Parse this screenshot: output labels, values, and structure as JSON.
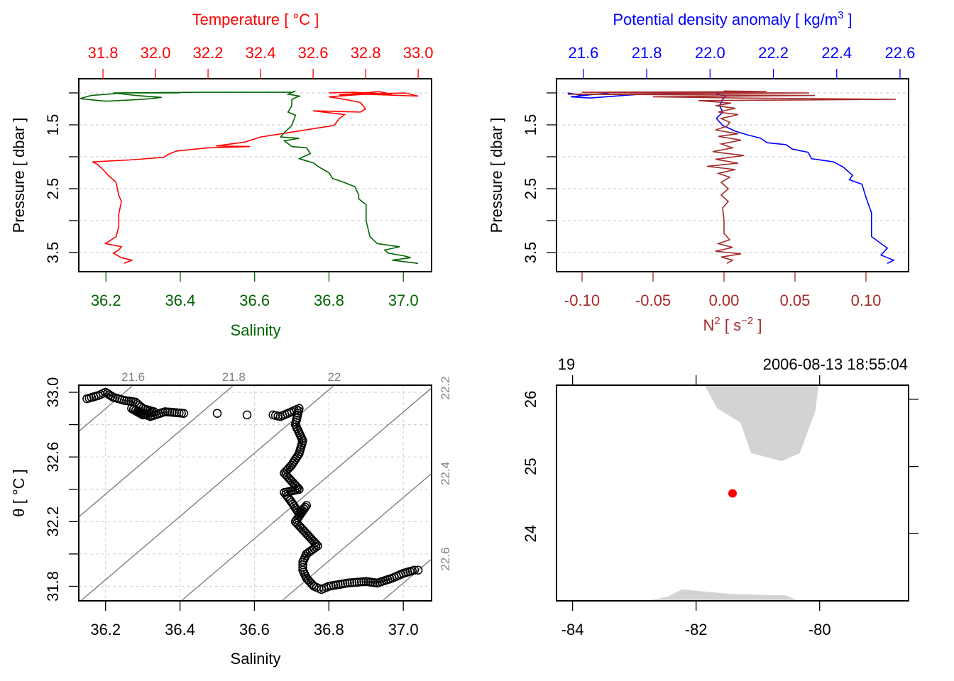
{
  "chart_data": [
    {
      "type": "line",
      "panel": "temperature-salinity-profile",
      "title": "Temperature [ °C ]",
      "xlabel": "Salinity",
      "ylabel": "Pressure [ dbar ]",
      "ylim": [
        3.8,
        0.778
      ],
      "xlim_top": [
        31.708,
        33.051
      ],
      "xlim_bottom": [
        36.127,
        37.076
      ],
      "top_tick_labels": [
        "31.8",
        "32.0",
        "32.2",
        "32.4",
        "32.6",
        "32.8",
        "33.0"
      ],
      "bottom_tick_labels": [
        "36.2",
        "36.4",
        "36.6",
        "36.8",
        "37.0"
      ],
      "y_ticks": [
        1.0,
        1.5,
        2.0,
        2.5,
        3.0,
        3.5
      ],
      "y_tick_labels": [
        "1.5",
        "2.5",
        "3.5"
      ],
      "grid": true,
      "series": [
        {
          "name": "Temperature",
          "axis": "top",
          "color": "#ff0000",
          "points": [
            [
              1.0,
              32.66
            ],
            [
              0.99,
              32.75
            ],
            [
              1.02,
              32.9
            ],
            [
              0.98,
              32.85
            ],
            [
              1.03,
              32.7
            ],
            [
              1.0,
              32.95
            ],
            [
              1.05,
              33.0
            ],
            [
              1.02,
              32.8
            ],
            [
              1.06,
              32.66
            ],
            [
              1.1,
              32.72
            ],
            [
              1.15,
              32.78
            ],
            [
              1.25,
              32.8
            ],
            [
              1.3,
              32.78
            ],
            [
              1.28,
              32.6
            ],
            [
              1.34,
              32.72
            ],
            [
              1.4,
              32.7
            ],
            [
              1.51,
              32.68
            ],
            [
              1.56,
              32.6
            ],
            [
              1.64,
              32.48
            ],
            [
              1.69,
              32.4
            ],
            [
              1.77,
              32.34
            ],
            [
              1.83,
              32.23
            ],
            [
              1.84,
              32.36
            ],
            [
              1.86,
              32.2
            ],
            [
              1.91,
              32.08
            ],
            [
              1.96,
              32.05
            ],
            [
              2.01,
              32.03
            ],
            [
              2.05,
              31.9
            ],
            [
              2.08,
              31.76
            ],
            [
              2.12,
              31.78
            ],
            [
              2.2,
              31.8
            ],
            [
              2.29,
              31.82
            ],
            [
              2.4,
              31.85
            ],
            [
              2.6,
              31.86
            ],
            [
              2.7,
              31.87
            ],
            [
              2.9,
              31.86
            ],
            [
              3.1,
              31.86
            ],
            [
              3.25,
              31.85
            ],
            [
              3.36,
              31.81
            ],
            [
              3.41,
              31.87
            ],
            [
              3.46,
              31.86
            ],
            [
              3.51,
              31.84
            ],
            [
              3.58,
              31.87
            ],
            [
              3.62,
              31.91
            ],
            [
              3.67,
              31.88
            ]
          ]
        },
        {
          "name": "Salinity",
          "axis": "bottom",
          "color": "#006400",
          "points": [
            [
              1.0,
              36.4
            ],
            [
              1.0,
              36.25
            ],
            [
              1.04,
              36.16
            ],
            [
              1.09,
              36.13
            ],
            [
              1.13,
              36.2
            ],
            [
              1.1,
              36.3
            ],
            [
              1.07,
              36.35
            ],
            [
              1.04,
              36.28
            ],
            [
              1.0,
              36.22
            ],
            [
              0.99,
              36.45
            ],
            [
              0.99,
              36.7
            ],
            [
              0.97,
              36.71
            ],
            [
              1.02,
              36.69
            ],
            [
              1.05,
              36.72
            ],
            [
              1.1,
              36.7
            ],
            [
              1.2,
              36.7
            ],
            [
              1.3,
              36.69
            ],
            [
              1.35,
              36.71
            ],
            [
              1.51,
              36.7
            ],
            [
              1.62,
              36.68
            ],
            [
              1.69,
              36.67
            ],
            [
              1.71,
              36.72
            ],
            [
              1.75,
              36.68
            ],
            [
              1.84,
              36.7
            ],
            [
              1.86,
              36.74
            ],
            [
              1.95,
              36.75
            ],
            [
              2.03,
              36.72
            ],
            [
              2.1,
              36.76
            ],
            [
              2.15,
              36.77
            ],
            [
              2.25,
              36.8
            ],
            [
              2.34,
              36.81
            ],
            [
              2.4,
              36.84
            ],
            [
              2.47,
              36.87
            ],
            [
              2.6,
              36.88
            ],
            [
              2.66,
              36.88
            ],
            [
              2.75,
              36.9
            ],
            [
              3.0,
              36.9
            ],
            [
              3.25,
              36.91
            ],
            [
              3.36,
              36.93
            ],
            [
              3.41,
              36.99
            ],
            [
              3.46,
              36.95
            ],
            [
              3.51,
              36.96
            ],
            [
              3.55,
              37.0
            ],
            [
              3.58,
              37.02
            ],
            [
              3.62,
              36.97
            ],
            [
              3.67,
              37.04
            ]
          ]
        }
      ]
    },
    {
      "type": "line",
      "panel": "density-n2-profile",
      "title_main": "Potential density anomaly [ kg/m",
      "title_sup": "3",
      "title_end": " ]",
      "xlabel_main": "N",
      "xlabel_sup": "2",
      "xlabel_mid": " [ s",
      "xlabel_sup2": "−2",
      "xlabel_end": " ]",
      "ylabel": "Pressure [ dbar ]",
      "ylim": [
        3.8,
        0.778
      ],
      "xlim_top": [
        21.515,
        22.627
      ],
      "xlim_bottom": [
        -0.118,
        0.13
      ],
      "top_tick_labels": [
        "21.6",
        "21.8",
        "22.0",
        "22.2",
        "22.4",
        "22.6"
      ],
      "bottom_tick_labels": [
        "-0.10",
        "-0.05",
        "0.00",
        "0.05",
        "0.10"
      ],
      "y_ticks": [
        1.0,
        1.5,
        2.0,
        2.5,
        3.0,
        3.5
      ],
      "y_tick_labels": [
        "1.5",
        "2.5",
        "3.5"
      ],
      "grid": true,
      "series": [
        {
          "name": "Potential density anomaly",
          "axis": "top",
          "color": "#0000ff",
          "points": [
            [
              1.0,
              21.55
            ],
            [
              1.04,
              21.6
            ],
            [
              1.0,
              21.68
            ],
            [
              1.06,
              21.56
            ],
            [
              1.08,
              21.62
            ],
            [
              1.02,
              21.78
            ],
            [
              0.99,
              22.0
            ],
            [
              0.98,
              22.06
            ],
            [
              1.02,
              22.02
            ],
            [
              1.05,
              22.05
            ],
            [
              1.1,
              22.04
            ],
            [
              1.2,
              22.03
            ],
            [
              1.3,
              22.04
            ],
            [
              1.4,
              22.02
            ],
            [
              1.51,
              22.04
            ],
            [
              1.6,
              22.08
            ],
            [
              1.66,
              22.12
            ],
            [
              1.71,
              22.16
            ],
            [
              1.78,
              22.18
            ],
            [
              1.81,
              22.24
            ],
            [
              1.88,
              22.26
            ],
            [
              1.93,
              22.31
            ],
            [
              2.03,
              22.32
            ],
            [
              2.08,
              22.39
            ],
            [
              2.16,
              22.42
            ],
            [
              2.29,
              22.45
            ],
            [
              2.36,
              22.44
            ],
            [
              2.43,
              22.48
            ],
            [
              2.6,
              22.49
            ],
            [
              2.88,
              22.51
            ],
            [
              3.25,
              22.51
            ],
            [
              3.36,
              22.54
            ],
            [
              3.43,
              22.56
            ],
            [
              3.54,
              22.54
            ],
            [
              3.62,
              22.58
            ],
            [
              3.67,
              22.56
            ]
          ]
        },
        {
          "name": "N2",
          "axis": "bottom",
          "color": "#a52a2a",
          "points": [
            [
              0.97,
              0.0
            ],
            [
              0.98,
              0.03
            ],
            [
              0.99,
              -0.1
            ],
            [
              1.0,
              0.06
            ],
            [
              1.02,
              -0.11
            ],
            [
              1.04,
              0.064
            ],
            [
              1.06,
              -0.05
            ],
            [
              1.08,
              0.01
            ],
            [
              1.1,
              0.121
            ],
            [
              1.12,
              -0.018
            ],
            [
              1.16,
              0.005
            ],
            [
              1.2,
              -0.006
            ],
            [
              1.24,
              0.008
            ],
            [
              1.3,
              -0.004
            ],
            [
              1.34,
              0.01
            ],
            [
              1.4,
              -0.002
            ],
            [
              1.46,
              0.004
            ],
            [
              1.52,
              0.002
            ],
            [
              1.58,
              -0.006
            ],
            [
              1.64,
              0.01
            ],
            [
              1.68,
              -0.004
            ],
            [
              1.74,
              0.012
            ],
            [
              1.8,
              -0.002
            ],
            [
              1.86,
              0.006
            ],
            [
              1.92,
              -0.008
            ],
            [
              1.98,
              0.014
            ],
            [
              2.04,
              -0.006
            ],
            [
              2.1,
              0.01
            ],
            [
              2.15,
              -0.012
            ],
            [
              2.2,
              0.008
            ],
            [
              2.26,
              -0.004
            ],
            [
              2.32,
              0.004
            ],
            [
              2.4,
              -0.002
            ],
            [
              2.5,
              0.003
            ],
            [
              2.6,
              -0.002
            ],
            [
              2.7,
              0.003
            ],
            [
              2.8,
              -0.001
            ],
            [
              3.0,
              0.0
            ],
            [
              3.2,
              0.0
            ],
            [
              3.3,
              0.004
            ],
            [
              3.36,
              -0.004
            ],
            [
              3.42,
              0.006
            ],
            [
              3.48,
              -0.006
            ],
            [
              3.52,
              0.012
            ],
            [
              3.57,
              -0.002
            ],
            [
              3.62,
              0.006
            ],
            [
              3.67,
              0.002
            ]
          ]
        }
      ]
    },
    {
      "type": "scatter",
      "panel": "ts-diagram",
      "xlabel": "Salinity",
      "ylabel": "θ [ °C ]",
      "xlim": [
        36.128,
        37.076
      ],
      "ylim": [
        31.71,
        33.044
      ],
      "x_tick_labels": [
        "36.2",
        "36.4",
        "36.6",
        "36.8",
        "37.0"
      ],
      "x_grid": [
        36.2,
        36.4,
        36.6,
        36.8,
        37.0
      ],
      "y_ticks": [
        31.8,
        32.0,
        32.2,
        32.4,
        32.6,
        32.8,
        33.0
      ],
      "y_tick_labels": [
        "31.8",
        "32.2",
        "32.6",
        "33.0"
      ],
      "grid": true,
      "isopycnal_labels": [
        "21.6",
        "21.8",
        "22",
        "22.2",
        "22.4",
        "22.6"
      ],
      "isopycnal_color": "#808080",
      "isopycnal_model": {
        "sigma_ref": 21.6,
        "S_ref": 36.274,
        "theta_ref": 33.044,
        "dsigma_dS": 0.74,
        "dsigma_dtheta": -0.378
      },
      "points": [
        [
          36.15,
          32.96
        ],
        [
          36.18,
          32.98
        ],
        [
          36.2,
          33.0
        ],
        [
          36.22,
          32.97
        ],
        [
          36.25,
          32.95
        ],
        [
          36.28,
          32.94
        ],
        [
          36.3,
          32.9
        ],
        [
          36.33,
          32.88
        ],
        [
          36.3,
          32.86
        ],
        [
          36.27,
          32.9
        ],
        [
          36.32,
          32.85
        ],
        [
          36.36,
          32.88
        ],
        [
          36.41,
          32.87
        ],
        [
          36.5,
          32.87
        ],
        [
          36.58,
          32.86
        ],
        [
          36.65,
          32.86
        ],
        [
          36.67,
          32.85
        ],
        [
          36.7,
          32.88
        ],
        [
          36.72,
          32.9
        ],
        [
          36.71,
          32.8
        ],
        [
          36.73,
          32.7
        ],
        [
          36.72,
          32.62
        ],
        [
          36.7,
          32.55
        ],
        [
          36.68,
          32.5
        ],
        [
          36.7,
          32.45
        ],
        [
          36.72,
          32.4
        ],
        [
          36.68,
          32.38
        ],
        [
          36.7,
          32.32
        ],
        [
          36.72,
          32.25
        ],
        [
          36.74,
          32.3
        ],
        [
          36.71,
          32.2
        ],
        [
          36.73,
          32.15
        ],
        [
          36.75,
          32.1
        ],
        [
          36.77,
          32.05
        ],
        [
          36.74,
          32.0
        ],
        [
          36.73,
          31.95
        ],
        [
          36.73,
          31.9
        ],
        [
          36.74,
          31.85
        ],
        [
          36.76,
          31.8
        ],
        [
          36.78,
          31.78
        ],
        [
          36.8,
          31.8
        ],
        [
          36.85,
          31.82
        ],
        [
          36.9,
          31.83
        ],
        [
          36.93,
          31.82
        ],
        [
          36.97,
          31.85
        ],
        [
          37.0,
          31.88
        ],
        [
          37.03,
          31.9
        ],
        [
          37.04,
          31.9
        ]
      ]
    },
    {
      "type": "map",
      "panel": "station-map",
      "station": "19",
      "time": "2006-08-13 18:55:04",
      "lonlim": [
        -84.26,
        -78.56
      ],
      "latlim": [
        23.0,
        26.21
      ],
      "x_tick_labels": [
        "-84",
        "-82",
        "-80"
      ],
      "y_tick_labels": [
        "26",
        "25",
        "24"
      ],
      "land_color": "#d3d3d3",
      "station_color": "#ff0000",
      "station_position": {
        "lon": -81.41,
        "lat": 24.6
      },
      "land": [
        [
          [
            -81.86,
            26.21
          ],
          [
            -81.66,
            25.87
          ],
          [
            -81.28,
            25.65
          ],
          [
            -81.11,
            25.2
          ],
          [
            -80.61,
            25.08
          ],
          [
            -80.32,
            25.2
          ],
          [
            -80.07,
            25.82
          ],
          [
            -80.02,
            26.21
          ]
        ],
        [
          [
            -82.82,
            23.0
          ],
          [
            -82.46,
            23.06
          ],
          [
            -82.23,
            23.17
          ],
          [
            -81.41,
            23.1
          ],
          [
            -80.54,
            23.08
          ],
          [
            -80.34,
            23.0
          ]
        ]
      ]
    }
  ]
}
